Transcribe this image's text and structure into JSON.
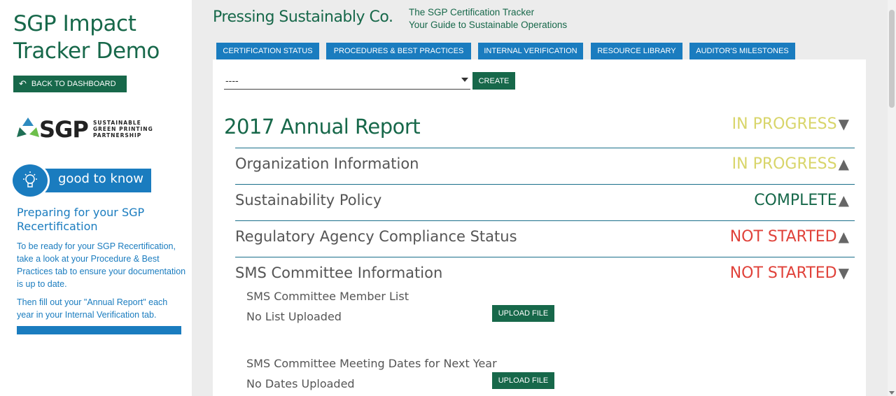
{
  "sidebar": {
    "app_title": "SGP Impact Tracker Demo",
    "back_button": "BACK TO DASHBOARD",
    "logo": {
      "letters": "SGP",
      "sub_line1": "SUSTAINABLE",
      "sub_line2": "GREEN PRINTING",
      "sub_line3": "PARTNERSHIP"
    },
    "good_to_know": {
      "label": "good to know",
      "icon": "lightbulb-icon",
      "title": "Preparing for your SGP Recertification",
      "paragraph1": "To be ready for your SGP Recertification, take a look at your Procedure & Best Practices tab to ensure your documentation is up to date.",
      "paragraph2": "Then fill out your \"Annual Report\" each year in your Internal Verification tab."
    }
  },
  "header": {
    "company": "Pressing Sustainably Co.",
    "tagline_line1": "The SGP Certification Tracker",
    "tagline_line2": "Your Guide to Sustainable Operations"
  },
  "tabs": [
    {
      "label": "CERTIFICATION STATUS",
      "active": false
    },
    {
      "label": "PROCEDURES & BEST PRACTICES",
      "active": false
    },
    {
      "label": "INTERNAL VERIFICATION",
      "active": true
    },
    {
      "label": "RESOURCE LIBRARY",
      "active": false
    },
    {
      "label": "AUDITOR'S MILESTONES",
      "active": false
    }
  ],
  "controls": {
    "select_value": "----",
    "create_button": "CREATE"
  },
  "report": {
    "title": "2017 Annual Report",
    "status": "IN PROGRESS",
    "expanded": true
  },
  "sections": [
    {
      "label": "Organization Information",
      "status": "IN PROGRESS",
      "expanded": false
    },
    {
      "label": "Sustainability Policy",
      "status": "COMPLETE",
      "expanded": false
    },
    {
      "label": "Regulatory Agency Compliance Status",
      "status": "NOT STARTED",
      "expanded": false
    },
    {
      "label": "SMS Committee Information",
      "status": "NOT STARTED",
      "expanded": true
    }
  ],
  "sms_items": [
    {
      "title": "SMS Committee Member List",
      "value": "No List Uploaded",
      "button": "UPLOAD FILE"
    },
    {
      "title": "SMS Committee Meeting Dates for Next Year",
      "value": "No Dates Uploaded",
      "button": "UPLOAD FILE"
    }
  ],
  "colors": {
    "brand_green": "#17684a",
    "accent_blue": "#1a7cbf",
    "in_progress": "#d8d56a",
    "complete": "#17684a",
    "not_started": "#e0423a"
  }
}
